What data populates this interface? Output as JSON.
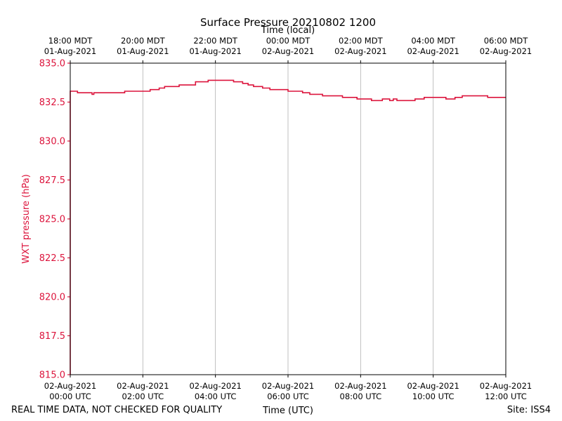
{
  "chart_data": {
    "type": "line",
    "title": "Surface Pressure 20210802 1200",
    "top_axis_label": "Time (local)",
    "xlabel": "Time (UTC)",
    "ylabel": "WXT pressure (hPa)",
    "ylim": [
      815.0,
      835.0
    ],
    "xlim_hours_utc": [
      0,
      12
    ],
    "y_ticks": [
      "815.0",
      "817.5",
      "820.0",
      "822.5",
      "825.0",
      "827.5",
      "830.0",
      "832.5",
      "835.0"
    ],
    "x_ticks_utc": [
      {
        "l1": "02-Aug-2021",
        "l2": "00:00 UTC"
      },
      {
        "l1": "02-Aug-2021",
        "l2": "02:00 UTC"
      },
      {
        "l1": "02-Aug-2021",
        "l2": "04:00 UTC"
      },
      {
        "l1": "02-Aug-2021",
        "l2": "06:00 UTC"
      },
      {
        "l1": "02-Aug-2021",
        "l2": "08:00 UTC"
      },
      {
        "l1": "02-Aug-2021",
        "l2": "10:00 UTC"
      },
      {
        "l1": "02-Aug-2021",
        "l2": "12:00 UTC"
      }
    ],
    "x_ticks_local": [
      {
        "l1": "18:00 MDT",
        "l2": "01-Aug-2021"
      },
      {
        "l1": "20:00 MDT",
        "l2": "01-Aug-2021"
      },
      {
        "l1": "22:00 MDT",
        "l2": "01-Aug-2021"
      },
      {
        "l1": "00:00 MDT",
        "l2": "02-Aug-2021"
      },
      {
        "l1": "02:00 MDT",
        "l2": "02-Aug-2021"
      },
      {
        "l1": "04:00 MDT",
        "l2": "02-Aug-2021"
      },
      {
        "l1": "06:00 MDT",
        "l2": "02-Aug-2021"
      }
    ],
    "grid": "vertical",
    "series": [
      {
        "color": "#dc143c",
        "x_hours_utc": [
          0.0,
          0.0,
          0.2,
          0.5,
          0.6,
          0.65,
          1.0,
          1.4,
          1.5,
          1.8,
          2.2,
          2.3,
          2.45,
          2.6,
          2.8,
          3.0,
          3.3,
          3.45,
          3.6,
          3.8,
          4.0,
          4.25,
          4.5,
          4.75,
          4.9,
          5.05,
          5.3,
          5.5,
          5.8,
          6.0,
          6.25,
          6.4,
          6.6,
          6.8,
          6.95,
          7.05,
          7.15,
          7.3,
          7.5,
          7.7,
          7.9,
          8.05,
          8.3,
          8.5,
          8.6,
          8.7,
          8.8,
          8.9,
          9.0,
          9.2,
          9.35,
          9.5,
          9.6,
          9.75,
          10.0,
          10.2,
          10.35,
          10.5,
          10.6,
          10.8,
          11.0,
          11.2,
          11.5,
          11.8,
          12.0
        ],
        "y": [
          815.0,
          833.2,
          833.1,
          833.1,
          833.0,
          833.1,
          833.1,
          833.1,
          833.2,
          833.2,
          833.3,
          833.3,
          833.4,
          833.5,
          833.5,
          833.6,
          833.6,
          833.8,
          833.8,
          833.9,
          833.9,
          833.9,
          833.8,
          833.7,
          833.6,
          833.5,
          833.4,
          833.3,
          833.3,
          833.2,
          833.2,
          833.1,
          833.0,
          833.0,
          832.9,
          832.9,
          832.9,
          832.9,
          832.8,
          832.8,
          832.7,
          832.7,
          832.6,
          832.6,
          832.7,
          832.7,
          832.6,
          832.7,
          832.6,
          832.6,
          832.6,
          832.7,
          832.7,
          832.8,
          832.8,
          832.8,
          832.7,
          832.7,
          832.8,
          832.9,
          832.9,
          832.9,
          832.8,
          832.8,
          832.8
        ]
      }
    ]
  },
  "footer": {
    "disclaimer": "REAL TIME DATA, NOT CHECKED FOR QUALITY",
    "site": "Site: ISS4"
  }
}
